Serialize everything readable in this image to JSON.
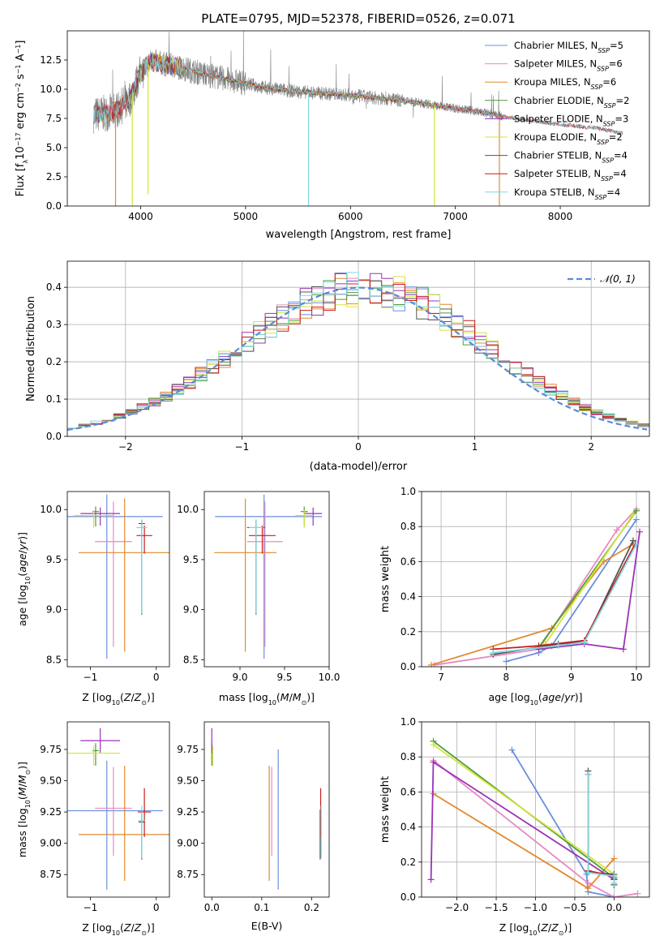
{
  "figure": {
    "title": "PLATE=0795, MJD=52378, FIBERID=0526, z=0.071"
  },
  "colors": {
    "Chabrier MILES": "#6a8fdd",
    "Salpeter MILES": "#e78ac3",
    "Kroupa MILES": "#e08a2e",
    "Chabrier ELODIE": "#4f9a3a",
    "Salpeter ELODIE": "#9b33b6",
    "Kroupa ELODIE": "#d2e63a",
    "Chabrier STELIB": "#555555",
    "Salpeter STELIB": "#c81c1c",
    "Kroupa STELIB": "#7fd8df",
    "gaussian": "#5b8bd6",
    "data": "#808080"
  },
  "chart_data": [
    {
      "id": "spectrum",
      "type": "line",
      "xlabel": "wavelength [Angstrom, rest frame]",
      "ylabel": "Flux [f_λ10^-17 erg cm^-2 s^-1 A^-1]",
      "xlim": [
        3300,
        8850
      ],
      "ylim": [
        0,
        15
      ],
      "xticks": [
        4000,
        5000,
        6000,
        7000,
        8000
      ],
      "yticks": [
        0.0,
        2.5,
        5.0,
        7.5,
        10.0,
        12.5
      ],
      "legend_position": "top-right",
      "legend": [
        {
          "label": "Chabrier MILES, N",
          "sub": "SSP",
          "tail": "=5",
          "color": "#6a8fdd"
        },
        {
          "label": "Salpeter MILES, N",
          "sub": "SSP",
          "tail": "=6",
          "color": "#e78ac3"
        },
        {
          "label": "Kroupa MILES, N",
          "sub": "SSP",
          "tail": "=6",
          "color": "#e08a2e"
        },
        {
          "label": "Chabrier ELODIE, N",
          "sub": "SSP",
          "tail": "=2",
          "color": "#4f9a3a"
        },
        {
          "label": "Salpeter ELODIE, N",
          "sub": "SSP",
          "tail": "=3",
          "color": "#9b33b6"
        },
        {
          "label": "Kroupa ELODIE, N",
          "sub": "SSP",
          "tail": "=2",
          "color": "#d2e63a"
        },
        {
          "label": "Chabrier STELIB, N",
          "sub": "SSP",
          "tail": "=4",
          "color": "#555555"
        },
        {
          "label": "Salpeter STELIB, N",
          "sub": "SSP",
          "tail": "=4",
          "color": "#c81c1c"
        },
        {
          "label": "Kroupa STELIB, N",
          "sub": "SSP",
          "tail": "=4",
          "color": "#7fd8df"
        }
      ],
      "continuum": {
        "wavelength": [
          3550,
          3700,
          3800,
          3900,
          4000,
          4100,
          4200,
          4400,
          4600,
          4800,
          5000,
          5200,
          5500,
          5800,
          6000,
          6300,
          6600,
          6900,
          7200,
          7500,
          7800,
          8100,
          8400,
          8600
        ],
        "flux": [
          7.8,
          8.0,
          8.4,
          9.2,
          11.5,
          12.4,
          12.2,
          11.8,
          11.3,
          10.9,
          10.5,
          10.1,
          9.8,
          9.6,
          9.5,
          9.2,
          8.9,
          8.5,
          8.1,
          7.6,
          7.2,
          6.9,
          6.6,
          6.2
        ]
      },
      "model_dips": [
        {
          "wavelength": 3760,
          "flux": 0
        },
        {
          "wavelength": 3920,
          "flux": 0
        },
        {
          "wavelength": 4070,
          "flux": 1.0
        },
        {
          "wavelength": 5600,
          "flux": 0
        },
        {
          "wavelength": 6800,
          "flux": 0
        },
        {
          "wavelength": 7420,
          "flux": 0
        }
      ]
    },
    {
      "id": "residuals",
      "type": "histogram",
      "xlabel": "(data-model)/error",
      "ylabel": "Normed distribution",
      "xlim": [
        -2.5,
        2.5
      ],
      "ylim": [
        0,
        0.47
      ],
      "xticks": [
        -2,
        -1,
        0,
        1,
        2
      ],
      "yticks": [
        0.0,
        0.1,
        0.2,
        0.3,
        0.4
      ],
      "legend_position": "top-right",
      "legend": [
        {
          "label": "𝒩(0, 1)",
          "style": "dashed",
          "color": "#5b8bd6"
        }
      ],
      "bin_width": 0.1,
      "bin_start": -2.5
    },
    {
      "id": "age-vs-z",
      "type": "errorbar",
      "xlabel": "Z [log10(Z/Z⊙)]",
      "ylabel": "age  [log10(age/yr)]",
      "xlim": [
        -1.35,
        0.2
      ],
      "ylim": [
        8.43,
        10.18
      ],
      "xticks": [
        -1,
        0
      ],
      "yticks": [
        8.5,
        9.0,
        9.5,
        10.0
      ],
      "points": [
        {
          "model": "Chabrier MILES",
          "x": -0.75,
          "xerr": [
            0.85,
            0.85
          ],
          "y": 9.93,
          "yerr": [
            1.42,
            0.22
          ]
        },
        {
          "model": "Salpeter MILES",
          "x": -0.65,
          "xerr": [
            0.28,
            0.28
          ],
          "y": 9.68,
          "yerr": [
            1.05,
            0.4
          ]
        },
        {
          "model": "Kroupa MILES",
          "x": -0.48,
          "xerr": [
            0.7,
            0.7
          ],
          "y": 9.57,
          "yerr": [
            0.99,
            0.54
          ]
        },
        {
          "model": "Chabrier ELODIE",
          "x": -0.92,
          "xerr": [
            0.05,
            0.05
          ],
          "y": 9.98,
          "yerr": [
            0.15,
            0.05
          ]
        },
        {
          "model": "Salpeter ELODIE",
          "x": -0.85,
          "xerr": [
            0.3,
            0.3
          ],
          "y": 9.96,
          "yerr": [
            0.12,
            0.06
          ]
        },
        {
          "model": "Kroupa ELODIE",
          "x": -0.95,
          "xerr": [
            0.3,
            0.3
          ],
          "y": 9.94,
          "yerr": [
            0.12,
            0.05
          ]
        },
        {
          "model": "Chabrier STELIB",
          "x": -0.22,
          "xerr": [
            0.05,
            0.05
          ],
          "y": 9.86,
          "yerr": [
            0.91,
            0.04
          ]
        },
        {
          "model": "Salpeter STELIB",
          "x": -0.18,
          "xerr": [
            0.12,
            0.12
          ],
          "y": 9.74,
          "yerr": [
            0.18,
            0.1
          ]
        },
        {
          "model": "Kroupa STELIB",
          "x": -0.22,
          "xerr": [
            0.08,
            0.08
          ],
          "y": 9.82,
          "yerr": [
            0.86,
            0.08
          ]
        }
      ]
    },
    {
      "id": "age-vs-mass",
      "type": "errorbar",
      "xlabel": "mass [log10(M/M⊙)]",
      "ylabel": "",
      "xlim": [
        8.6,
        10.0
      ],
      "ylim": [
        8.43,
        10.18
      ],
      "xticks": [
        9.0,
        9.5,
        10.0
      ],
      "yticks": [
        8.5,
        9.0,
        9.5,
        10.0
      ],
      "points": [
        {
          "model": "Chabrier MILES",
          "x": 9.27,
          "xerr": [
            0.55,
            0.65
          ],
          "y": 9.93,
          "yerr": [
            1.42,
            0.22
          ]
        },
        {
          "model": "Salpeter MILES",
          "x": 9.28,
          "xerr": [
            0.2,
            0.2
          ],
          "y": 9.68,
          "yerr": [
            1.05,
            0.4
          ]
        },
        {
          "model": "Kroupa MILES",
          "x": 9.06,
          "xerr": [
            0.35,
            0.35
          ],
          "y": 9.57,
          "yerr": [
            0.99,
            0.54
          ]
        },
        {
          "model": "Chabrier ELODIE",
          "x": 9.72,
          "xerr": [
            0.04,
            0.04
          ],
          "y": 9.98,
          "yerr": [
            0.15,
            0.05
          ]
        },
        {
          "model": "Salpeter ELODIE",
          "x": 9.82,
          "xerr": [
            0.1,
            0.1
          ],
          "y": 9.96,
          "yerr": [
            0.12,
            0.06
          ]
        },
        {
          "model": "Kroupa ELODIE",
          "x": 9.72,
          "xerr": [
            0.1,
            0.1
          ],
          "y": 9.94,
          "yerr": [
            0.12,
            0.05
          ]
        },
        {
          "model": "Chabrier STELIB",
          "x": 9.18,
          "xerr": [
            0.1,
            0.1
          ],
          "y": 9.82,
          "yerr": [
            0.87,
            0.08
          ]
        },
        {
          "model": "Salpeter STELIB",
          "x": 9.25,
          "xerr": [
            0.15,
            0.15
          ],
          "y": 9.74,
          "yerr": [
            0.18,
            0.1
          ]
        },
        {
          "model": "Kroupa STELIB",
          "x": 9.18,
          "xerr": [
            0.08,
            0.08
          ],
          "y": 9.82,
          "yerr": [
            0.86,
            0.08
          ]
        }
      ]
    },
    {
      "id": "weight-vs-age",
      "type": "line",
      "xlabel": "age  [log10(age/yr)]",
      "ylabel": "mass weight",
      "xlim": [
        6.7,
        10.2
      ],
      "ylim": [
        0,
        1
      ],
      "xticks": [
        7,
        8,
        9,
        10
      ],
      "yticks": [
        0.0,
        0.2,
        0.4,
        0.6,
        0.8,
        1.0
      ],
      "series": [
        {
          "model": "Chabrier MILES",
          "x": [
            8.0,
            8.5,
            8.7,
            10.0
          ],
          "y": [
            0.03,
            0.08,
            0.12,
            0.84
          ]
        },
        {
          "model": "Salpeter MILES",
          "x": [
            6.9,
            8.5,
            9.7,
            10.0
          ],
          "y": [
            0.01,
            0.1,
            0.78,
            0.9
          ]
        },
        {
          "model": "Kroupa MILES",
          "x": [
            6.85,
            8.7,
            9.5,
            9.95
          ],
          "y": [
            0.01,
            0.22,
            0.6,
            0.7
          ]
        },
        {
          "model": "Chabrier ELODIE",
          "x": [
            8.5,
            10.0
          ],
          "y": [
            0.11,
            0.89
          ]
        },
        {
          "model": "Salpeter ELODIE",
          "x": [
            8.5,
            9.2,
            9.8,
            10.05
          ],
          "y": [
            0.1,
            0.13,
            0.1,
            0.77
          ]
        },
        {
          "model": "Kroupa ELODIE",
          "x": [
            8.6,
            9.95
          ],
          "y": [
            0.13,
            0.87
          ]
        },
        {
          "model": "Chabrier STELIB",
          "x": [
            7.8,
            8.8,
            9.2,
            9.95
          ],
          "y": [
            0.07,
            0.13,
            0.14,
            0.72
          ]
        },
        {
          "model": "Salpeter STELIB",
          "x": [
            7.8,
            8.5,
            9.2,
            9.98
          ],
          "y": [
            0.1,
            0.12,
            0.15,
            0.7
          ]
        },
        {
          "model": "Kroupa STELIB",
          "x": [
            7.8,
            8.8,
            9.2,
            10.0
          ],
          "y": [
            0.08,
            0.12,
            0.14,
            0.7
          ]
        }
      ]
    },
    {
      "id": "mass-vs-z",
      "type": "errorbar",
      "xlabel": "Z [log10(Z/Z⊙)]",
      "ylabel": "mass [log10(M/M⊙)]",
      "xlim": [
        -1.35,
        0.2
      ],
      "ylim": [
        8.57,
        9.97
      ],
      "xticks": [
        -1,
        0
      ],
      "yticks": [
        8.75,
        9.0,
        9.25,
        9.5,
        9.75
      ],
      "points": [
        {
          "model": "Chabrier MILES",
          "x": -0.75,
          "xerr": [
            0.85,
            0.85
          ],
          "y": 9.26,
          "yerr": [
            0.63,
            0.4
          ]
        },
        {
          "model": "Salpeter MILES",
          "x": -0.65,
          "xerr": [
            0.28,
            0.28
          ],
          "y": 9.28,
          "yerr": [
            0.38,
            0.33
          ]
        },
        {
          "model": "Kroupa MILES",
          "x": -0.48,
          "xerr": [
            0.7,
            0.7
          ],
          "y": 9.07,
          "yerr": [
            0.37,
            0.55
          ]
        },
        {
          "model": "Chabrier ELODIE",
          "x": -0.92,
          "xerr": [
            0.05,
            0.05
          ],
          "y": 9.74,
          "yerr": [
            0.12,
            0.06
          ]
        },
        {
          "model": "Salpeter ELODIE",
          "x": -0.85,
          "xerr": [
            0.3,
            0.3
          ],
          "y": 9.82,
          "yerr": [
            0.1,
            0.1
          ]
        },
        {
          "model": "Kroupa ELODIE",
          "x": -0.95,
          "xerr": [
            0.4,
            0.4
          ],
          "y": 9.72,
          "yerr": [
            0.1,
            0.06
          ]
        },
        {
          "model": "Chabrier STELIB",
          "x": -0.22,
          "xerr": [
            0.05,
            0.05
          ],
          "y": 9.17,
          "yerr": [
            0.3,
            0.1
          ]
        },
        {
          "model": "Salpeter STELIB",
          "x": -0.18,
          "xerr": [
            0.1,
            0.1
          ],
          "y": 9.25,
          "yerr": [
            0.2,
            0.19
          ]
        },
        {
          "model": "Kroupa STELIB",
          "x": -0.22,
          "xerr": [
            0.05,
            0.05
          ],
          "y": 9.18,
          "yerr": [
            0.3,
            0.12
          ]
        }
      ]
    },
    {
      "id": "mass-vs-ebv",
      "type": "errorbar",
      "xlabel": "E(B-V)",
      "ylabel": "",
      "xlim": [
        -0.015,
        0.235
      ],
      "ylim": [
        8.57,
        9.97
      ],
      "xticks": [
        0.0,
        0.1,
        0.2
      ],
      "yticks": [
        8.75,
        9.0,
        9.25,
        9.5,
        9.75
      ],
      "points": [
        {
          "model": "Chabrier MILES",
          "x": 0.133,
          "xerr": [
            0,
            0
          ],
          "y": 9.26,
          "yerr": [
            0.63,
            0.49
          ]
        },
        {
          "model": "Salpeter MILES",
          "x": 0.12,
          "xerr": [
            0,
            0
          ],
          "y": 9.28,
          "yerr": [
            0.38,
            0.33
          ]
        },
        {
          "model": "Kroupa MILES",
          "x": 0.115,
          "xerr": [
            0,
            0
          ],
          "y": 9.07,
          "yerr": [
            0.37,
            0.55
          ]
        },
        {
          "model": "Chabrier ELODIE",
          "x": 0.0,
          "xerr": [
            0,
            0
          ],
          "y": 9.74,
          "yerr": [
            0.12,
            0.06
          ]
        },
        {
          "model": "Salpeter ELODIE",
          "x": 0.0,
          "xerr": [
            0,
            0
          ],
          "y": 9.82,
          "yerr": [
            0.1,
            0.1
          ]
        },
        {
          "model": "Kroupa ELODIE",
          "x": 0.002,
          "xerr": [
            0,
            0
          ],
          "y": 9.72,
          "yerr": [
            0.1,
            0.06
          ]
        },
        {
          "model": "Chabrier STELIB",
          "x": 0.217,
          "xerr": [
            0,
            0
          ],
          "y": 9.17,
          "yerr": [
            0.3,
            0.1
          ]
        },
        {
          "model": "Salpeter STELIB",
          "x": 0.218,
          "xerr": [
            0,
            0
          ],
          "y": 9.25,
          "yerr": [
            0.2,
            0.19
          ]
        },
        {
          "model": "Kroupa STELIB",
          "x": 0.219,
          "xerr": [
            0,
            0
          ],
          "y": 9.18,
          "yerr": [
            0.3,
            0.12
          ]
        }
      ]
    },
    {
      "id": "weight-vs-z",
      "type": "line",
      "xlabel": "Z [log10(Z/Z⊙)]",
      "ylabel": "mass weight",
      "xlim": [
        -2.45,
        0.45
      ],
      "ylim": [
        0,
        1
      ],
      "xticks": [
        -2.0,
        -1.5,
        -1.0,
        -0.5,
        0.0
      ],
      "yticks": [
        0.0,
        0.2,
        0.4,
        0.6,
        0.8,
        1.0
      ],
      "series": [
        {
          "model": "Chabrier MILES",
          "x": [
            -1.3,
            -0.35,
            -0.33,
            0.0
          ],
          "y": [
            0.84,
            0.13,
            0.03,
            0.0
          ]
        },
        {
          "model": "Salpeter MILES",
          "x": [
            -2.3,
            -0.33,
            0.0,
            0.3
          ],
          "y": [
            0.78,
            0.08,
            0.0,
            0.02
          ]
        },
        {
          "model": "Kroupa MILES",
          "x": [
            -2.3,
            -0.33,
            0.0
          ],
          "y": [
            0.59,
            0.05,
            0.22
          ]
        },
        {
          "model": "Chabrier ELODIE",
          "x": [
            -2.3,
            0.0
          ],
          "y": [
            0.89,
            0.11
          ]
        },
        {
          "model": "Salpeter ELODIE",
          "x": [
            -2.33,
            -2.3,
            0.0
          ],
          "y": [
            0.1,
            0.77,
            0.1
          ]
        },
        {
          "model": "Kroupa ELODIE",
          "x": [
            -2.3,
            0.0
          ],
          "y": [
            0.87,
            0.13
          ]
        },
        {
          "model": "Chabrier STELIB",
          "x": [
            -0.33,
            -0.33,
            0.0,
            0.0
          ],
          "y": [
            0.72,
            0.14,
            0.13,
            0.07
          ]
        },
        {
          "model": "Salpeter STELIB",
          "x": [
            -0.33,
            -0.33,
            0.0,
            0.0
          ],
          "y": [
            0.7,
            0.15,
            0.12,
            0.1
          ]
        },
        {
          "model": "Kroupa STELIB",
          "x": [
            -0.33,
            -0.33,
            0.0,
            0.0
          ],
          "y": [
            0.7,
            0.14,
            0.12,
            0.08
          ]
        }
      ]
    }
  ]
}
